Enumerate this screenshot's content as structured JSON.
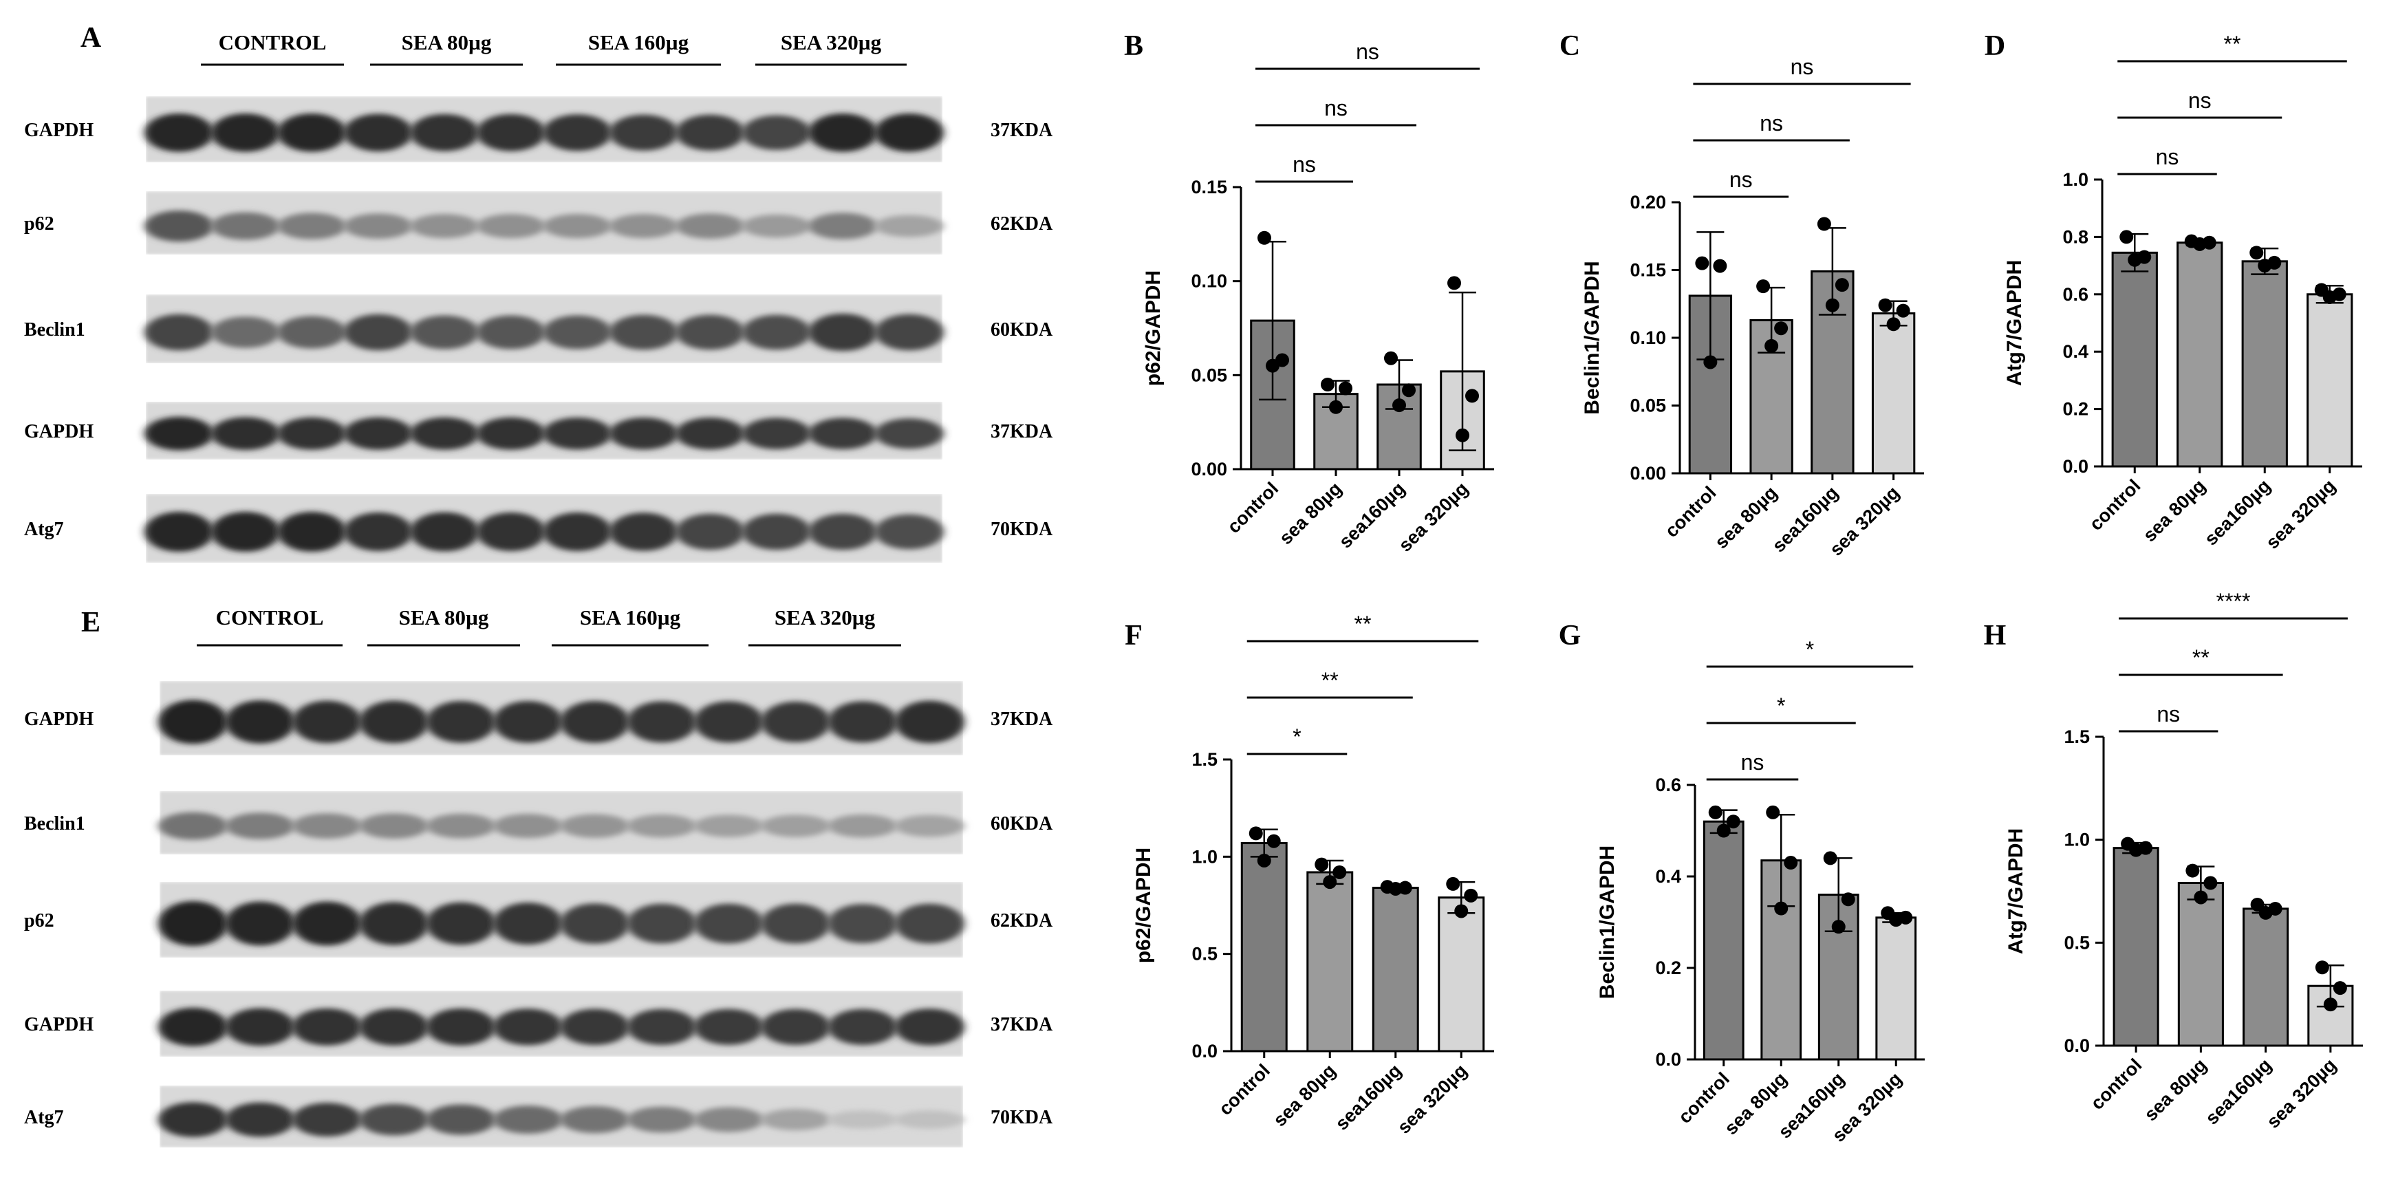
{
  "blots": [
    {
      "panel": "A",
      "groups": [
        "CONTROL",
        "SEA 80µg",
        "SEA 160µg",
        "SEA 320µg"
      ],
      "lanes_per_group": 3,
      "rows": [
        {
          "protein": "GAPDH",
          "kda": "37KDA",
          "intensity": [
            0.95,
            0.95,
            0.95,
            0.92,
            0.9,
            0.9,
            0.88,
            0.85,
            0.85,
            0.8,
            0.95,
            0.95
          ]
        },
        {
          "protein": "p62",
          "kda": "62KDA",
          "intensity": [
            0.7,
            0.55,
            0.5,
            0.45,
            0.4,
            0.4,
            0.4,
            0.4,
            0.45,
            0.35,
            0.5,
            0.3
          ]
        },
        {
          "protein": "Beclin1",
          "kda": "60KDA",
          "intensity": [
            0.8,
            0.6,
            0.65,
            0.8,
            0.7,
            0.7,
            0.7,
            0.75,
            0.75,
            0.75,
            0.85,
            0.8
          ]
        },
        {
          "protein": "GAPDH",
          "kda": "37KDA",
          "intensity": [
            0.95,
            0.92,
            0.9,
            0.9,
            0.9,
            0.9,
            0.88,
            0.88,
            0.88,
            0.85,
            0.85,
            0.8
          ]
        },
        {
          "protein": "Atg7",
          "kda": "70KDA",
          "intensity": [
            0.95,
            0.95,
            0.95,
            0.9,
            0.92,
            0.9,
            0.9,
            0.88,
            0.8,
            0.8,
            0.8,
            0.75
          ]
        }
      ]
    },
    {
      "panel": "E",
      "groups": [
        "CONTROL",
        "SEA 80µg",
        "SEA 160µg",
        "SEA 320µg"
      ],
      "lanes_per_group": 3,
      "rows": [
        {
          "protein": "GAPDH",
          "kda": "37KDA",
          "intensity": [
            0.98,
            0.95,
            0.92,
            0.92,
            0.9,
            0.9,
            0.9,
            0.88,
            0.88,
            0.86,
            0.88,
            0.92
          ]
        },
        {
          "protein": "Beclin1",
          "kda": "60KDA",
          "intensity": [
            0.55,
            0.5,
            0.45,
            0.45,
            0.42,
            0.4,
            0.38,
            0.35,
            0.32,
            0.32,
            0.35,
            0.3
          ]
        },
        {
          "protein": "p62",
          "kda": "62KDA",
          "intensity": [
            0.98,
            0.95,
            0.95,
            0.92,
            0.9,
            0.88,
            0.82,
            0.8,
            0.8,
            0.8,
            0.78,
            0.8
          ]
        },
        {
          "protein": "GAPDH",
          "kda": "37KDA",
          "intensity": [
            0.95,
            0.92,
            0.9,
            0.9,
            0.9,
            0.88,
            0.86,
            0.85,
            0.85,
            0.85,
            0.85,
            0.88
          ]
        },
        {
          "protein": "Atg7",
          "kda": "70KDA",
          "intensity": [
            0.9,
            0.88,
            0.85,
            0.75,
            0.7,
            0.6,
            0.55,
            0.5,
            0.45,
            0.3,
            0.15,
            0.15
          ]
        }
      ]
    }
  ],
  "chart_data": [
    {
      "panel": "B",
      "type": "bar",
      "ylabel": "p62/GAPDH",
      "ylim": [
        0,
        0.15
      ],
      "yticks": [
        "0.00",
        "0.05",
        "0.10",
        "0.15"
      ],
      "categories": [
        "control",
        "sea 80µg",
        "sea160µg",
        "sea 320µg"
      ],
      "values": [
        0.079,
        0.04,
        0.045,
        0.052
      ],
      "errors": [
        0.042,
        0.007,
        0.013,
        0.042
      ],
      "points": [
        [
          0.123,
          0.058,
          0.055
        ],
        [
          0.045,
          0.043,
          0.033
        ],
        [
          0.059,
          0.042,
          0.034
        ],
        [
          0.099,
          0.039,
          0.018
        ]
      ],
      "bar_colors": [
        "#7d7d7d",
        "#9b9b9b",
        "#8c8c8c",
        "#d6d6d6"
      ],
      "comparisons": [
        {
          "from": 0,
          "to": 1,
          "label": "ns"
        },
        {
          "from": 0,
          "to": 2,
          "label": "ns"
        },
        {
          "from": 0,
          "to": 3,
          "label": "ns"
        }
      ]
    },
    {
      "panel": "C",
      "type": "bar",
      "ylabel": "Beclin1/GAPDH",
      "ylim": [
        0,
        0.2
      ],
      "yticks": [
        "0.00",
        "0.05",
        "0.10",
        "0.15",
        "0.20"
      ],
      "categories": [
        "control",
        "sea 80µg",
        "sea160µg",
        "sea 320µg"
      ],
      "values": [
        0.131,
        0.113,
        0.149,
        0.118
      ],
      "errors": [
        0.047,
        0.024,
        0.032,
        0.009
      ],
      "points": [
        [
          0.155,
          0.153,
          0.082
        ],
        [
          0.138,
          0.107,
          0.094
        ],
        [
          0.184,
          0.139,
          0.124
        ],
        [
          0.124,
          0.12,
          0.11
        ]
      ],
      "bar_colors": [
        "#7d7d7d",
        "#9b9b9b",
        "#8c8c8c",
        "#d6d6d6"
      ],
      "comparisons": [
        {
          "from": 0,
          "to": 1,
          "label": "ns"
        },
        {
          "from": 0,
          "to": 2,
          "label": "ns"
        },
        {
          "from": 0,
          "to": 3,
          "label": "ns"
        }
      ]
    },
    {
      "panel": "D",
      "type": "bar",
      "ylabel": "Atg7/GAPDH",
      "ylim": [
        0,
        1.0
      ],
      "yticks": [
        "0.0",
        "0.2",
        "0.4",
        "0.6",
        "0.8",
        "1.0"
      ],
      "categories": [
        "control",
        "sea 80µg",
        "sea160µg",
        "sea 320µg"
      ],
      "values": [
        0.745,
        0.78,
        0.715,
        0.6
      ],
      "errors": [
        0.065,
        0.01,
        0.045,
        0.03
      ],
      "points": [
        [
          0.8,
          0.73,
          0.72
        ],
        [
          0.785,
          0.78,
          0.775
        ],
        [
          0.745,
          0.71,
          0.7
        ],
        [
          0.615,
          0.6,
          0.59
        ]
      ],
      "bar_colors": [
        "#7d7d7d",
        "#9b9b9b",
        "#8c8c8c",
        "#d6d6d6"
      ],
      "comparisons": [
        {
          "from": 0,
          "to": 1,
          "label": "ns"
        },
        {
          "from": 0,
          "to": 2,
          "label": "ns"
        },
        {
          "from": 0,
          "to": 3,
          "label": "**"
        }
      ]
    },
    {
      "panel": "F",
      "type": "bar",
      "ylabel": "p62/GAPDH",
      "ylim": [
        0,
        1.5
      ],
      "yticks": [
        "0.0",
        "0.5",
        "1.0",
        "1.5"
      ],
      "categories": [
        "control",
        "sea 80µg",
        "sea160µg",
        "sea 320µg"
      ],
      "values": [
        1.07,
        0.92,
        0.84,
        0.79
      ],
      "errors": [
        0.07,
        0.06,
        0.01,
        0.08
      ],
      "points": [
        [
          1.12,
          1.08,
          0.98
        ],
        [
          0.96,
          0.92,
          0.87
        ],
        [
          0.845,
          0.84,
          0.835
        ],
        [
          0.86,
          0.8,
          0.72
        ]
      ],
      "bar_colors": [
        "#7d7d7d",
        "#9b9b9b",
        "#8c8c8c",
        "#d6d6d6"
      ],
      "comparisons": [
        {
          "from": 0,
          "to": 1,
          "label": "*"
        },
        {
          "from": 0,
          "to": 2,
          "label": "**"
        },
        {
          "from": 0,
          "to": 3,
          "label": "**"
        }
      ]
    },
    {
      "panel": "G",
      "type": "bar",
      "ylabel": "Beclin1/GAPDH",
      "ylim": [
        0,
        0.6
      ],
      "yticks": [
        "0.0",
        "0.2",
        "0.4",
        "0.6"
      ],
      "categories": [
        "control",
        "sea 80µg",
        "sea160µg",
        "sea 320µg"
      ],
      "values": [
        0.52,
        0.435,
        0.36,
        0.31
      ],
      "errors": [
        0.025,
        0.1,
        0.08,
        0.01
      ],
      "points": [
        [
          0.54,
          0.52,
          0.5
        ],
        [
          0.54,
          0.43,
          0.33
        ],
        [
          0.44,
          0.35,
          0.29
        ],
        [
          0.32,
          0.31,
          0.305
        ]
      ],
      "bar_colors": [
        "#7d7d7d",
        "#9b9b9b",
        "#8c8c8c",
        "#d6d6d6"
      ],
      "comparisons": [
        {
          "from": 0,
          "to": 1,
          "label": "ns"
        },
        {
          "from": 0,
          "to": 2,
          "label": "*"
        },
        {
          "from": 0,
          "to": 3,
          "label": "*"
        }
      ]
    },
    {
      "panel": "H",
      "type": "bar",
      "ylabel": "Atg7/GAPDH",
      "ylim": [
        0,
        1.5
      ],
      "yticks": [
        "0.0",
        "0.5",
        "1.0",
        "1.5"
      ],
      "categories": [
        "control",
        "sea 80µg",
        "sea160µg",
        "sea 320µg"
      ],
      "values": [
        0.96,
        0.79,
        0.665,
        0.29
      ],
      "errors": [
        0.025,
        0.08,
        0.02,
        0.1
      ],
      "points": [
        [
          0.98,
          0.96,
          0.95
        ],
        [
          0.85,
          0.79,
          0.72
        ],
        [
          0.685,
          0.665,
          0.645
        ],
        [
          0.38,
          0.28,
          0.2
        ]
      ],
      "bar_colors": [
        "#7d7d7d",
        "#9b9b9b",
        "#8c8c8c",
        "#d6d6d6"
      ],
      "comparisons": [
        {
          "from": 0,
          "to": 1,
          "label": "ns"
        },
        {
          "from": 0,
          "to": 2,
          "label": "**"
        },
        {
          "from": 0,
          "to": 3,
          "label": "****"
        }
      ]
    }
  ]
}
